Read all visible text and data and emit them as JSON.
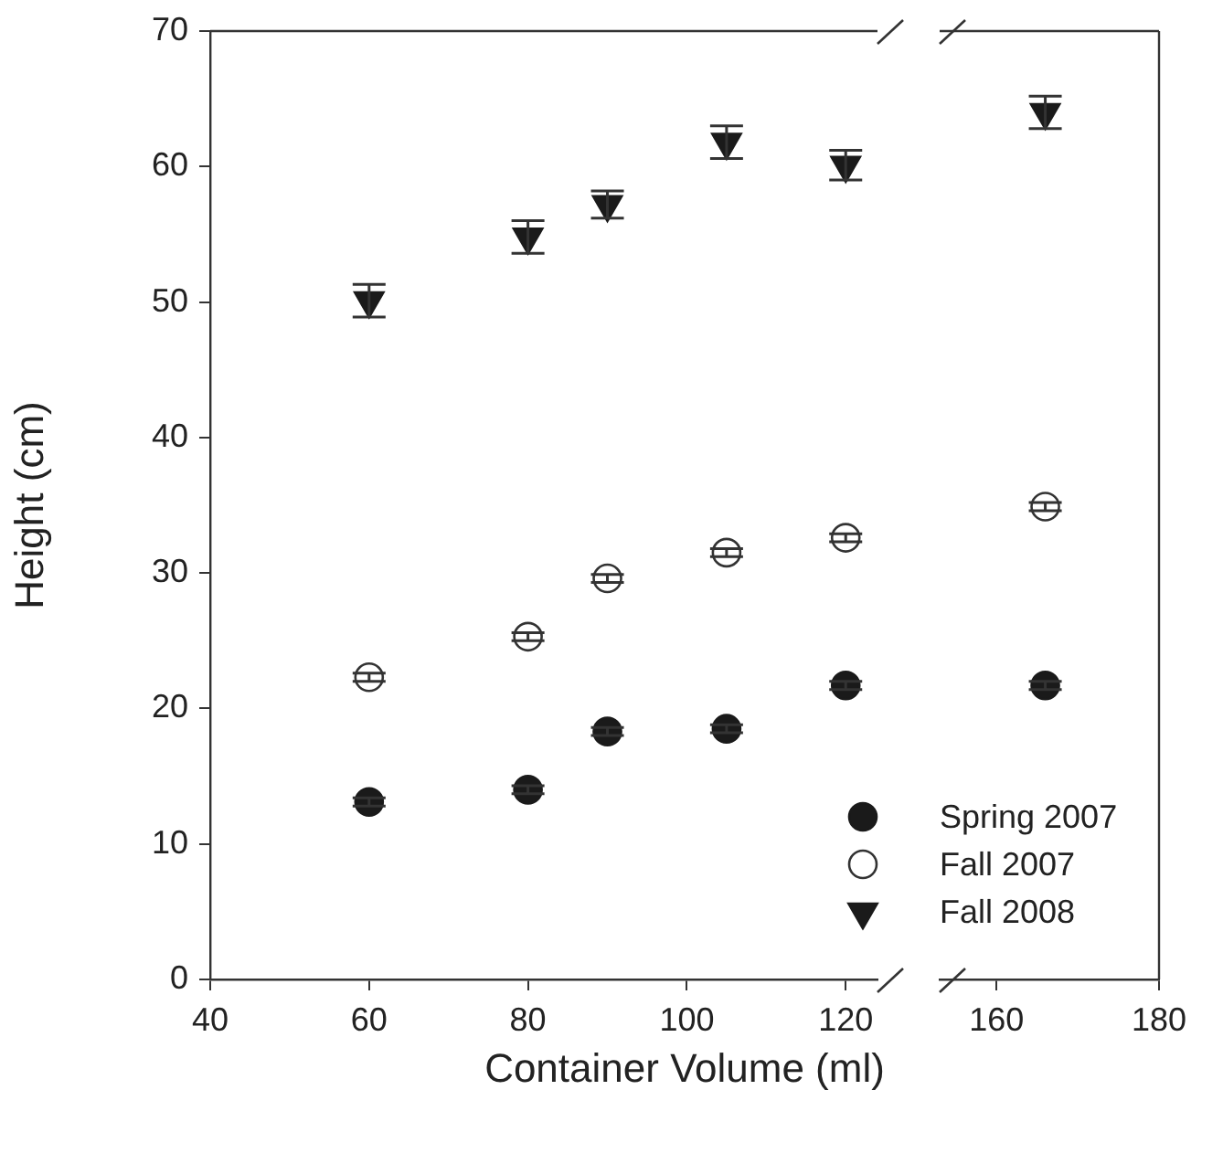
{
  "chart_data": [
    {
      "type": "scatter",
      "xlabel": "Container Volume (ml)",
      "ylabel": "Height (cm)",
      "xlim": [
        40,
        124
      ],
      "xticks": [
        40,
        60,
        80,
        100,
        120
      ],
      "ylim": [
        0,
        70
      ],
      "yticks": [
        0,
        10,
        20,
        30,
        40,
        50,
        60,
        70
      ],
      "grid": false,
      "legend": "bottom right",
      "series": [
        {
          "name": "Spring 2007",
          "color": "#1a1a1a",
          "marker": "circle",
          "x": [
            60,
            80,
            90,
            105,
            120
          ],
          "values": [
            13.1,
            14.0,
            18.3,
            18.5,
            21.7
          ],
          "errors": [
            0.3,
            0.3,
            0.3,
            0.3,
            0.3
          ]
        },
        {
          "name": "Fall 2007",
          "color": "#ffffff",
          "marker": "circle",
          "x": [
            60,
            80,
            90,
            105,
            120
          ],
          "values": [
            22.3,
            25.3,
            29.6,
            31.5,
            32.6
          ],
          "errors": [
            0.3,
            0.3,
            0.3,
            0.3,
            0.3
          ]
        },
        {
          "name": "Fall 2008",
          "color": "#1a1a1a",
          "marker": "triangle",
          "x": [
            60,
            80,
            90,
            105,
            120
          ],
          "values": [
            50.1,
            54.8,
            57.2,
            61.8,
            60.1
          ],
          "errors": [
            1.2,
            1.2,
            1.0,
            1.2,
            1.1
          ]
        }
      ]
    },
    {
      "type": "scatter",
      "xlim": [
        153,
        180
      ],
      "xticks": [
        160,
        180
      ],
      "ylim": [
        0,
        70
      ],
      "tick_labels": "x",
      "grid": false,
      "series": [
        {
          "color": "#1a1a1a",
          "marker": "circle",
          "x": [
            166
          ],
          "values": [
            21.7
          ],
          "errors": [
            0.3
          ]
        },
        {
          "color": "#ffffff",
          "marker": "circle",
          "x": [
            166
          ],
          "values": [
            34.9
          ],
          "errors": [
            0.3
          ]
        },
        {
          "color": "#1a1a1a",
          "marker": "triangle",
          "x": [
            166
          ],
          "values": [
            64.0
          ],
          "errors": [
            1.2
          ]
        }
      ]
    }
  ]
}
